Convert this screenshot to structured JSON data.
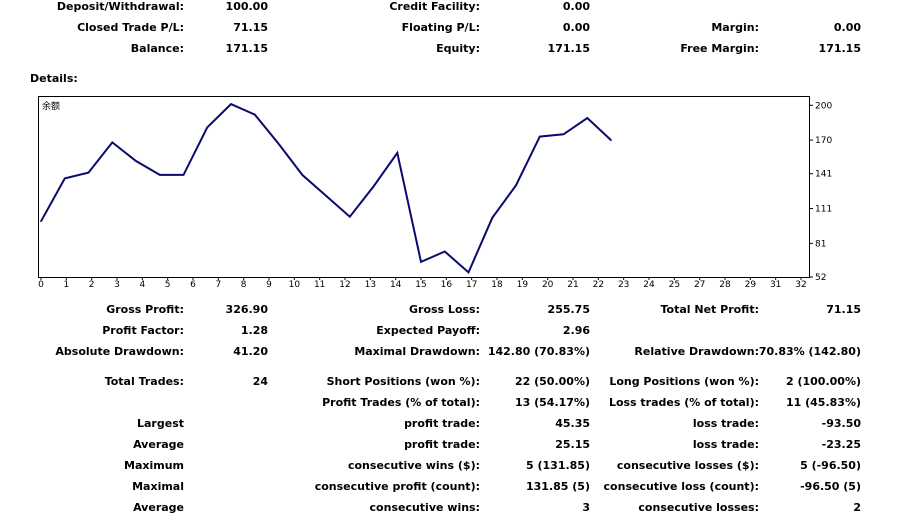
{
  "top": {
    "deposit_label": "Deposit/Withdrawal:",
    "deposit_value": "100.00",
    "credit_label": "Credit Facility:",
    "credit_value": "0.00",
    "closed_pl_label": "Closed Trade P/L:",
    "closed_pl_value": "71.15",
    "floating_pl_label": "Floating P/L:",
    "floating_pl_value": "0.00",
    "margin_label": "Margin:",
    "margin_value": "0.00",
    "balance_label": "Balance:",
    "balance_value": "171.15",
    "equity_label": "Equity:",
    "equity_value": "171.15",
    "free_margin_label": "Free Margin:",
    "free_margin_value": "171.15"
  },
  "details_label": "Details:",
  "chart_data": {
    "type": "line",
    "title": "",
    "corner_glyph": "余额",
    "series": [
      {
        "name": "Balance",
        "x": [
          0,
          1,
          2,
          3,
          4,
          5,
          6,
          7,
          8,
          9,
          10,
          11,
          12,
          13,
          14,
          15,
          16,
          17,
          18,
          19,
          20,
          21,
          22,
          23,
          24
        ],
        "values": [
          100,
          137,
          142,
          168,
          152,
          140,
          140,
          181,
          201,
          192,
          167,
          140,
          122,
          104,
          130,
          159,
          65,
          74,
          56,
          103,
          131,
          173,
          175,
          189,
          170
        ]
      }
    ],
    "x_ticks": [
      "0",
      "1",
      "2",
      "3",
      "4",
      "5",
      "6",
      "7",
      "8",
      "9",
      "10",
      "11",
      "12",
      "13",
      "14",
      "15",
      "16",
      "17",
      "18",
      "19",
      "20",
      "21",
      "22",
      "23",
      "24",
      "25",
      "27",
      "28",
      "29",
      "31",
      "32"
    ],
    "y_ticks": [
      "52",
      "81",
      "111",
      "141",
      "170",
      "200"
    ],
    "xlim": [
      0,
      32
    ],
    "ylim": [
      52,
      208
    ],
    "line_color": "#0a0a6e"
  },
  "stats": {
    "gross_profit_label": "Gross Profit:",
    "gross_profit_value": "326.90",
    "gross_loss_label": "Gross Loss:",
    "gross_loss_value": "255.75",
    "total_net_label": "Total Net Profit:",
    "total_net_value": "71.15",
    "profit_factor_label": "Profit Factor:",
    "profit_factor_value": "1.28",
    "expected_payoff_label": "Expected Payoff:",
    "expected_payoff_value": "2.96",
    "abs_dd_label": "Absolute Drawdown:",
    "abs_dd_value": "41.20",
    "max_dd_label": "Maximal Drawdown:",
    "max_dd_value": "142.80 (70.83%)",
    "rel_dd_label": "Relative Drawdown:",
    "rel_dd_value": "70.83% (142.80)",
    "total_trades_label": "Total Trades:",
    "total_trades_value": "24",
    "short_label": "Short Positions (won %):",
    "short_value": "22 (50.00%)",
    "long_label": "Long Positions (won %):",
    "long_value": "2 (100.00%)",
    "profit_trades_label": "Profit Trades (% of total):",
    "profit_trades_value": "13 (54.17%)",
    "loss_trades_label": "Loss trades (% of total):",
    "loss_trades_value": "11 (45.83%)",
    "largest_label": "Largest",
    "largest_profit_label": "profit trade:",
    "largest_profit_value": "45.35",
    "largest_loss_label": "loss trade:",
    "largest_loss_value": "-93.50",
    "average_label": "Average",
    "avg_profit_label": "profit trade:",
    "avg_profit_value": "25.15",
    "avg_loss_label": "loss trade:",
    "avg_loss_value": "-23.25",
    "maximum_label": "Maximum",
    "max_cons_wins_label": "consecutive wins ($):",
    "max_cons_wins_value": "5 (131.85)",
    "max_cons_losses_label": "consecutive losses ($):",
    "max_cons_losses_value": "5 (-96.50)",
    "maximal_label": "Maximal",
    "maximal_profit_label": "consecutive profit (count):",
    "maximal_profit_value": "131.85 (5)",
    "maximal_loss_label": "consecutive loss (count):",
    "maximal_loss_value": "-96.50 (5)",
    "average2_label": "Average",
    "avg_cons_wins_label": "consecutive wins:",
    "avg_cons_wins_value": "3",
    "avg_cons_losses_label": "consecutive losses:",
    "avg_cons_losses_value": "2"
  }
}
